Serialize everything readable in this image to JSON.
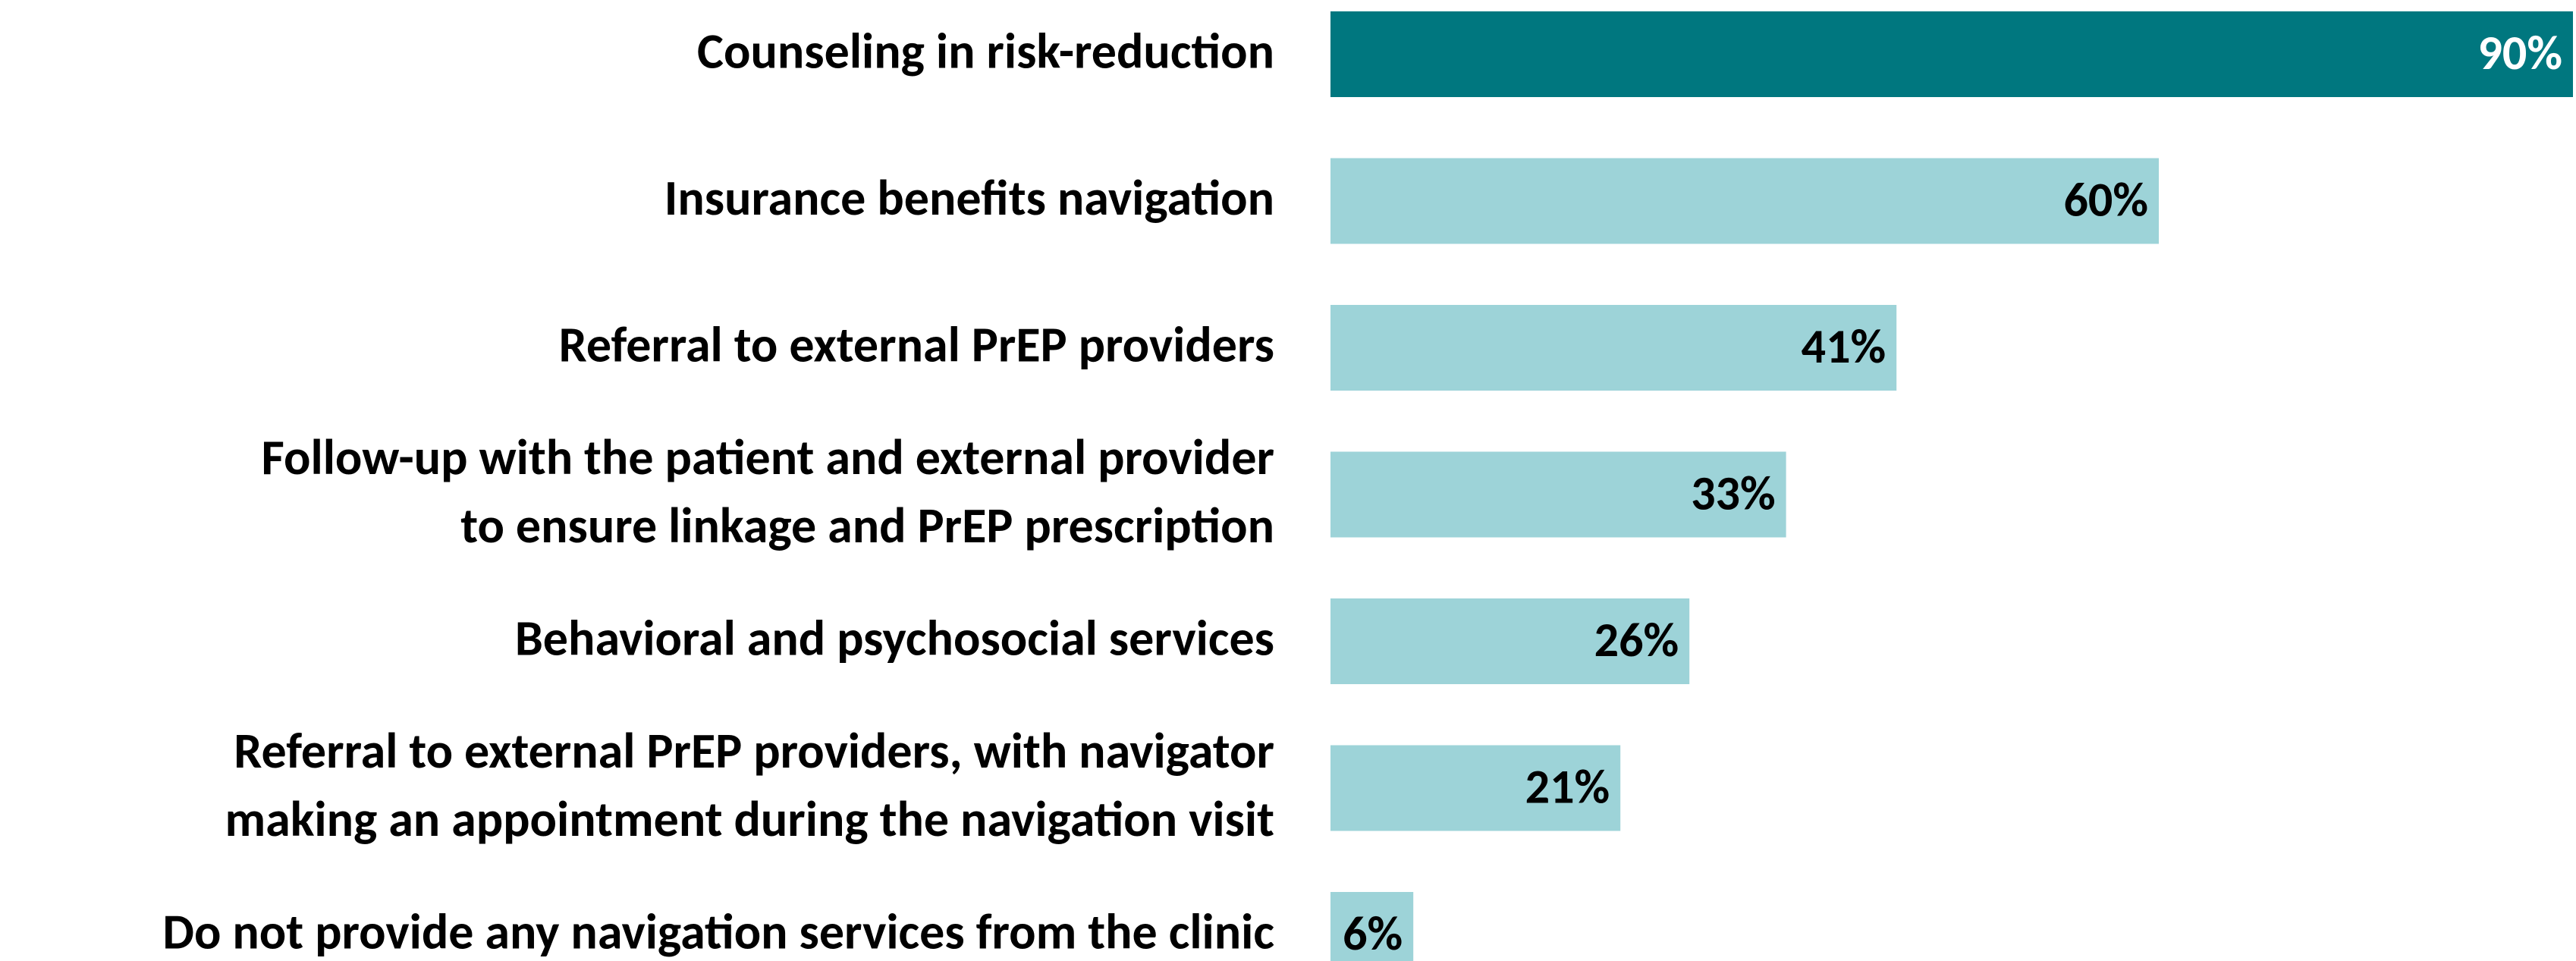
{
  "chart_data": {
    "type": "bar",
    "orientation": "horizontal",
    "categories": [
      [
        "Counseling in risk-reduction"
      ],
      [
        "Insurance benefits navigation"
      ],
      [
        "Referral to external PrEP providers"
      ],
      [
        "Follow-up with the patient and external provider",
        "to ensure linkage and PrEP prescription"
      ],
      [
        "Behavioral and psychosocial services"
      ],
      [
        "Referral to external PrEP providers, with navigator",
        "making an appointment during the navigation visit"
      ],
      [
        "Do not provide any navigation services from the clinic"
      ]
    ],
    "values": [
      90,
      60,
      41,
      33,
      26,
      21,
      6
    ],
    "value_labels": [
      "90%",
      "60%",
      "41%",
      "33%",
      "26%",
      "21%",
      "6%"
    ],
    "colors": [
      "#00777f",
      "#9dd3d8",
      "#9dd3d8",
      "#9dd3d8",
      "#9dd3d8",
      "#9dd3d8",
      "#9dd3d8"
    ],
    "value_label_colors": [
      "#ffffff",
      "#000000",
      "#000000",
      "#000000",
      "#000000",
      "#000000",
      "#000000"
    ]
  }
}
